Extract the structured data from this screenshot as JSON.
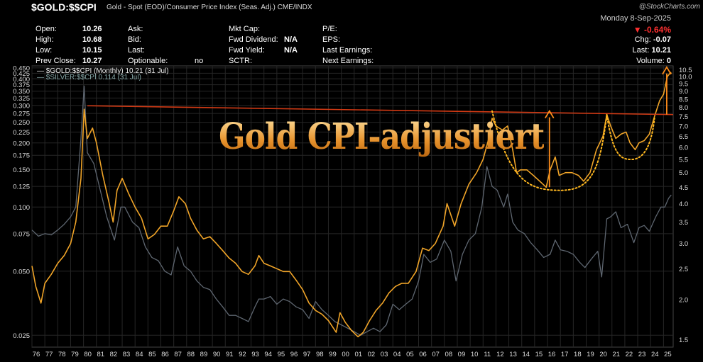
{
  "header": {
    "symbol": "$GOLD:$$CPI",
    "description": "Gold - Spot (EOD)/Consumer Price Index (Seas. Adj.)",
    "exchange": "CME/INDX",
    "logo": "@StockCharts.com"
  },
  "quote": {
    "open_label": "Open:",
    "open": "10.26",
    "high_label": "High:",
    "high": "10.68",
    "low_label": "Low:",
    "low": "10.15",
    "prev_close_label": "Prev Close:",
    "prev_close": "10.27",
    "ask_label": "Ask:",
    "bid_label": "Bid:",
    "last_label_mid": "Last:",
    "optionable_label": "Optionable:",
    "optionable": "no",
    "mkt_cap_label": "Mkt Cap:",
    "fwd_dividend_label": "Fwd Dividend:",
    "fwd_dividend": "N/A",
    "fwd_yield_label": "Fwd Yield:",
    "fwd_yield": "N/A",
    "sctr_label": "SCTR:",
    "pe_label": "P/E:",
    "eps_label": "EPS:",
    "last_earnings_label": "Last Earnings:",
    "next_earnings_label": "Next Earnings:",
    "date": "Monday  8-Sep-2025",
    "change_pct": "▼ -0.64%",
    "chg_label": "Chg:",
    "chg": "-0.07",
    "last_label": "Last:",
    "last": "10.21",
    "volume_label": "Volume:",
    "volume": "0"
  },
  "legend": {
    "gold": "— $GOLD:$$CPI (Monthly) 10.21 (31 Jul)",
    "silver": "— $SILVER:$$CPI 0.114 (31 Jul)"
  },
  "overlay_title": "Gold CPI-adjustiert",
  "colors": {
    "gold": "#f0a428",
    "silver": "#5e6670",
    "resistance": "#d23a14",
    "annot": "#ff8c1a",
    "cup": "#ffb820",
    "grid": "#262626"
  },
  "chart_data": {
    "type": "line",
    "y_scale": "log",
    "x_range": [
      1976,
      2025.75
    ],
    "x_ticks": [
      "76",
      "77",
      "78",
      "79",
      "80",
      "81",
      "82",
      "83",
      "84",
      "85",
      "86",
      "87",
      "88",
      "89",
      "90",
      "91",
      "92",
      "93",
      "94",
      "95",
      "96",
      "97",
      "98",
      "99",
      "00",
      "01",
      "02",
      "03",
      "04",
      "05",
      "06",
      "07",
      "08",
      "09",
      "10",
      "11",
      "12",
      "13",
      "14",
      "15",
      "16",
      "17",
      "18",
      "19",
      "20",
      "21",
      "22",
      "23",
      "24",
      "25"
    ],
    "left_axis": {
      "range": [
        0.022,
        0.46
      ],
      "ticks": [
        0.025,
        0.05,
        0.075,
        0.1,
        0.125,
        0.15,
        0.175,
        0.2,
        0.225,
        0.25,
        0.275,
        0.3,
        0.325,
        0.35,
        0.375,
        0.4,
        0.425,
        0.45
      ],
      "labels": [
        "0.025",
        "0.050",
        "0.075",
        "0.100",
        "0.125",
        "0.150",
        "0.175",
        "0.200",
        "0.225",
        "0.250",
        "0.275",
        "0.300",
        "0.325",
        "0.350",
        "0.375",
        "0.400",
        "0.425",
        "0.450"
      ]
    },
    "right_axis": {
      "range": [
        1.42,
        10.8
      ],
      "ticks": [
        1.5,
        2.0,
        2.5,
        3.0,
        3.5,
        4.0,
        4.5,
        5.0,
        5.5,
        6.0,
        6.5,
        7.0,
        7.5,
        8.0,
        8.5,
        9.0,
        9.5,
        10.0,
        10.5
      ],
      "labels": [
        "1.5",
        "2.0",
        "2.5",
        "3.0",
        "3.5",
        "4.0",
        "4.5",
        "5.0",
        "5.5",
        "6.0",
        "6.5",
        "7.0",
        "7.5",
        "8.0",
        "8.5",
        "9.0",
        "9.5",
        "10.0",
        "10.5"
      ]
    },
    "series": [
      {
        "name": "$GOLD:$$CPI",
        "axis": "right",
        "points": [
          [
            1976.0,
            2.55
          ],
          [
            1976.3,
            2.2
          ],
          [
            1976.7,
            1.95
          ],
          [
            1977.0,
            2.25
          ],
          [
            1977.5,
            2.4
          ],
          [
            1978.0,
            2.6
          ],
          [
            1978.5,
            2.75
          ],
          [
            1979.0,
            3.0
          ],
          [
            1979.4,
            3.5
          ],
          [
            1979.8,
            4.8
          ],
          [
            1980.05,
            7.9
          ],
          [
            1980.3,
            6.4
          ],
          [
            1980.7,
            6.9
          ],
          [
            1981.0,
            6.2
          ],
          [
            1981.5,
            4.9
          ],
          [
            1982.0,
            4.0
          ],
          [
            1982.3,
            3.5
          ],
          [
            1982.6,
            4.4
          ],
          [
            1983.0,
            4.8
          ],
          [
            1983.5,
            4.3
          ],
          [
            1984.0,
            3.9
          ],
          [
            1984.5,
            3.6
          ],
          [
            1985.0,
            3.1
          ],
          [
            1985.5,
            3.2
          ],
          [
            1986.0,
            3.4
          ],
          [
            1986.5,
            3.4
          ],
          [
            1987.0,
            3.8
          ],
          [
            1987.4,
            4.2
          ],
          [
            1987.9,
            4.0
          ],
          [
            1988.3,
            3.6
          ],
          [
            1988.8,
            3.3
          ],
          [
            1989.3,
            3.1
          ],
          [
            1989.8,
            3.15
          ],
          [
            1990.3,
            3.0
          ],
          [
            1990.8,
            2.85
          ],
          [
            1991.3,
            2.7
          ],
          [
            1991.8,
            2.6
          ],
          [
            1992.3,
            2.45
          ],
          [
            1992.8,
            2.4
          ],
          [
            1993.3,
            2.55
          ],
          [
            1993.6,
            2.75
          ],
          [
            1994.0,
            2.6
          ],
          [
            1994.5,
            2.55
          ],
          [
            1995.0,
            2.5
          ],
          [
            1995.5,
            2.45
          ],
          [
            1996.0,
            2.45
          ],
          [
            1996.5,
            2.3
          ],
          [
            1997.0,
            2.15
          ],
          [
            1997.5,
            1.95
          ],
          [
            1998.0,
            1.85
          ],
          [
            1998.5,
            1.8
          ],
          [
            1999.0,
            1.72
          ],
          [
            1999.6,
            1.58
          ],
          [
            1999.9,
            1.82
          ],
          [
            2000.3,
            1.7
          ],
          [
            2000.8,
            1.6
          ],
          [
            2001.3,
            1.53
          ],
          [
            2001.7,
            1.58
          ],
          [
            2002.2,
            1.72
          ],
          [
            2002.7,
            1.85
          ],
          [
            2003.2,
            1.95
          ],
          [
            2003.7,
            2.1
          ],
          [
            2004.2,
            2.2
          ],
          [
            2004.7,
            2.25
          ],
          [
            2005.2,
            2.25
          ],
          [
            2005.8,
            2.45
          ],
          [
            2006.3,
            2.9
          ],
          [
            2006.8,
            2.85
          ],
          [
            2007.3,
            3.0
          ],
          [
            2007.9,
            3.4
          ],
          [
            2008.2,
            4.0
          ],
          [
            2008.8,
            3.4
          ],
          [
            2009.3,
            4.0
          ],
          [
            2009.9,
            4.6
          ],
          [
            2010.5,
            5.0
          ],
          [
            2011.0,
            5.5
          ],
          [
            2011.4,
            6.3
          ],
          [
            2011.7,
            7.4
          ],
          [
            2012.0,
            7.0
          ],
          [
            2012.5,
            6.8
          ],
          [
            2012.9,
            7.0
          ],
          [
            2013.3,
            5.9
          ],
          [
            2013.6,
            5.0
          ],
          [
            2013.9,
            5.1
          ],
          [
            2014.4,
            5.1
          ],
          [
            2014.9,
            4.9
          ],
          [
            2015.4,
            4.7
          ],
          [
            2015.9,
            4.5
          ],
          [
            2016.2,
            5.1
          ],
          [
            2016.6,
            5.6
          ],
          [
            2016.9,
            4.9
          ],
          [
            2017.4,
            5.0
          ],
          [
            2017.9,
            5.0
          ],
          [
            2018.4,
            4.9
          ],
          [
            2018.8,
            4.7
          ],
          [
            2019.3,
            5.0
          ],
          [
            2019.8,
            5.9
          ],
          [
            2020.3,
            6.5
          ],
          [
            2020.6,
            7.6
          ],
          [
            2020.9,
            7.0
          ],
          [
            2021.3,
            6.4
          ],
          [
            2021.7,
            6.6
          ],
          [
            2022.1,
            6.7
          ],
          [
            2022.4,
            6.2
          ],
          [
            2022.8,
            5.9
          ],
          [
            2023.1,
            6.2
          ],
          [
            2023.5,
            6.3
          ],
          [
            2023.9,
            6.6
          ],
          [
            2024.3,
            7.5
          ],
          [
            2024.7,
            8.4
          ],
          [
            2025.0,
            8.8
          ],
          [
            2025.3,
            10.0
          ],
          [
            2025.55,
            10.3
          ],
          [
            2025.6,
            10.21
          ]
        ]
      },
      {
        "name": "$SILVER:$$CPI",
        "axis": "left",
        "points": [
          [
            1976.0,
            0.078
          ],
          [
            1976.5,
            0.073
          ],
          [
            1977.0,
            0.075
          ],
          [
            1977.5,
            0.074
          ],
          [
            1978.0,
            0.078
          ],
          [
            1978.5,
            0.083
          ],
          [
            1979.0,
            0.09
          ],
          [
            1979.4,
            0.1
          ],
          [
            1979.8,
            0.21
          ],
          [
            1980.05,
            0.37
          ],
          [
            1980.3,
            0.18
          ],
          [
            1980.8,
            0.16
          ],
          [
            1981.3,
            0.12
          ],
          [
            1981.8,
            0.09
          ],
          [
            1982.4,
            0.07
          ],
          [
            1982.9,
            0.1
          ],
          [
            1983.2,
            0.1
          ],
          [
            1983.8,
            0.085
          ],
          [
            1984.3,
            0.08
          ],
          [
            1984.8,
            0.065
          ],
          [
            1985.3,
            0.058
          ],
          [
            1985.8,
            0.056
          ],
          [
            1986.3,
            0.05
          ],
          [
            1986.8,
            0.048
          ],
          [
            1987.3,
            0.065
          ],
          [
            1987.8,
            0.053
          ],
          [
            1988.3,
            0.05
          ],
          [
            1988.8,
            0.045
          ],
          [
            1989.3,
            0.042
          ],
          [
            1989.8,
            0.041
          ],
          [
            1990.3,
            0.037
          ],
          [
            1990.8,
            0.034
          ],
          [
            1991.3,
            0.031
          ],
          [
            1991.8,
            0.031
          ],
          [
            1992.3,
            0.03
          ],
          [
            1992.8,
            0.029
          ],
          [
            1993.3,
            0.034
          ],
          [
            1993.6,
            0.037
          ],
          [
            1994.0,
            0.037
          ],
          [
            1994.5,
            0.038
          ],
          [
            1995.0,
            0.035
          ],
          [
            1995.5,
            0.037
          ],
          [
            1996.0,
            0.036
          ],
          [
            1996.5,
            0.034
          ],
          [
            1997.0,
            0.033
          ],
          [
            1997.5,
            0.03
          ],
          [
            1998.0,
            0.036
          ],
          [
            1998.5,
            0.033
          ],
          [
            1999.0,
            0.031
          ],
          [
            1999.5,
            0.029
          ],
          [
            2000.0,
            0.028
          ],
          [
            2000.5,
            0.027
          ],
          [
            2001.0,
            0.026
          ],
          [
            2001.5,
            0.025
          ],
          [
            2002.0,
            0.026
          ],
          [
            2002.5,
            0.027
          ],
          [
            2003.0,
            0.026
          ],
          [
            2003.5,
            0.028
          ],
          [
            2004.0,
            0.035
          ],
          [
            2004.5,
            0.033
          ],
          [
            2005.0,
            0.035
          ],
          [
            2005.5,
            0.037
          ],
          [
            2006.0,
            0.045
          ],
          [
            2006.4,
            0.06
          ],
          [
            2006.9,
            0.055
          ],
          [
            2007.4,
            0.057
          ],
          [
            2008.0,
            0.07
          ],
          [
            2008.5,
            0.062
          ],
          [
            2008.9,
            0.045
          ],
          [
            2009.4,
            0.06
          ],
          [
            2009.9,
            0.07
          ],
          [
            2010.4,
            0.075
          ],
          [
            2010.9,
            0.1
          ],
          [
            2011.3,
            0.155
          ],
          [
            2011.7,
            0.125
          ],
          [
            2012.1,
            0.12
          ],
          [
            2012.6,
            0.1
          ],
          [
            2012.9,
            0.115
          ],
          [
            2013.3,
            0.085
          ],
          [
            2013.7,
            0.078
          ],
          [
            2014.2,
            0.075
          ],
          [
            2014.7,
            0.068
          ],
          [
            2015.2,
            0.063
          ],
          [
            2015.7,
            0.058
          ],
          [
            2016.2,
            0.06
          ],
          [
            2016.6,
            0.07
          ],
          [
            2017.0,
            0.063
          ],
          [
            2017.5,
            0.062
          ],
          [
            2018.0,
            0.06
          ],
          [
            2018.5,
            0.055
          ],
          [
            2018.9,
            0.052
          ],
          [
            2019.4,
            0.057
          ],
          [
            2019.9,
            0.062
          ],
          [
            2020.2,
            0.047
          ],
          [
            2020.6,
            0.088
          ],
          [
            2020.9,
            0.09
          ],
          [
            2021.3,
            0.095
          ],
          [
            2021.7,
            0.08
          ],
          [
            2022.2,
            0.083
          ],
          [
            2022.7,
            0.068
          ],
          [
            2023.1,
            0.08
          ],
          [
            2023.5,
            0.082
          ],
          [
            2023.9,
            0.077
          ],
          [
            2024.4,
            0.09
          ],
          [
            2024.8,
            0.1
          ],
          [
            2025.1,
            0.1
          ],
          [
            2025.4,
            0.11
          ],
          [
            2025.6,
            0.114
          ]
        ]
      }
    ],
    "annotations": {
      "resistance_line": {
        "from": [
          1980.3,
          8.1
        ],
        "to": [
          2025.75,
          7.6
        ]
      },
      "cup1": {
        "from": [
          2011.7,
          7.8
        ],
        "bottom": [
          2017.0,
          4.4
        ],
        "to": [
          2020.6,
          7.6
        ]
      },
      "cup2": {
        "from": [
          2020.6,
          7.6
        ],
        "bottom": [
          2022.5,
          5.5
        ],
        "to": [
          2024.3,
          7.4
        ]
      },
      "arrow_cup1": {
        "x": 2016.15,
        "from": 4.5,
        "to": 7.8
      },
      "arrow_breakout": {
        "x": 2025.25,
        "from": 7.6,
        "to": 10.7
      }
    }
  }
}
